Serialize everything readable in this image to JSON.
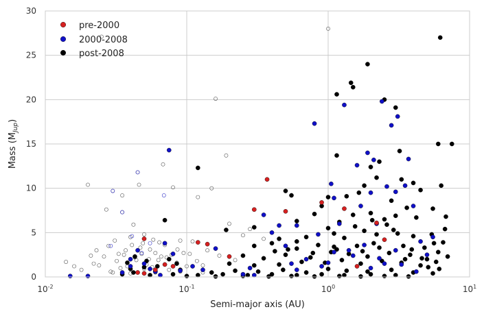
{
  "chart_data": {
    "type": "scatter",
    "title": "",
    "xlabel": "Semi-major axis (AU)",
    "ylabel_main": "Mass (M",
    "ylabel_sub": "Jup",
    "ylabel_end": ")",
    "x_scale": "log",
    "xlim": [
      0.01,
      10
    ],
    "ylim": [
      0,
      30
    ],
    "x_ticks": [
      {
        "value": 0.01,
        "base": "10",
        "exp": "-2"
      },
      {
        "value": 0.1,
        "base": "10",
        "exp": "-1"
      },
      {
        "value": 1,
        "base": "10",
        "exp": "0"
      },
      {
        "value": 10,
        "base": "10",
        "exp": "1"
      }
    ],
    "y_ticks": [
      0,
      5,
      10,
      15,
      20,
      25,
      30
    ],
    "grid": true,
    "legend_position": "top-left",
    "series": [
      {
        "name": "pre-2000",
        "color": "#d62020",
        "marker": "filled",
        "points": [
          [
            0.05,
            4.3
          ],
          [
            0.045,
            0.5
          ],
          [
            0.07,
            1.4
          ],
          [
            0.08,
            1.2
          ],
          [
            0.12,
            3.9
          ],
          [
            0.14,
            3.7
          ],
          [
            0.2,
            2.3
          ],
          [
            0.3,
            7.6
          ],
          [
            0.37,
            11
          ],
          [
            0.5,
            7.4
          ],
          [
            0.9,
            8.4
          ],
          [
            1.3,
            7.7
          ],
          [
            1.6,
            1.2
          ],
          [
            2.2,
            6.1
          ],
          [
            2.5,
            4.2
          ],
          [
            0.05,
            0.4
          ],
          [
            0.06,
            0.8
          ]
        ]
      },
      {
        "name": "2000-2008",
        "color": "#1010c8",
        "marker": "filled",
        "points": [
          [
            0.075,
            14.3
          ],
          [
            0.07,
            3.8
          ],
          [
            0.035,
            0.5
          ],
          [
            0.04,
            1.2
          ],
          [
            0.06,
            0.6
          ],
          [
            0.09,
            0.7
          ],
          [
            0.11,
            1.2
          ],
          [
            0.16,
            3.2
          ],
          [
            0.28,
            1.0
          ],
          [
            0.35,
            7.0
          ],
          [
            0.4,
            5.0
          ],
          [
            0.45,
            5.8
          ],
          [
            0.55,
            1.5
          ],
          [
            0.6,
            5.8
          ],
          [
            0.8,
            17.3
          ],
          [
            0.85,
            4.8
          ],
          [
            1.05,
            10.5
          ],
          [
            1.1,
            8.9
          ],
          [
            1.2,
            6.0
          ],
          [
            1.3,
            19.4
          ],
          [
            1.4,
            3.0
          ],
          [
            1.6,
            12.6
          ],
          [
            1.7,
            8.0
          ],
          [
            1.9,
            14.0
          ],
          [
            2.0,
            9.5
          ],
          [
            2.1,
            13.2
          ],
          [
            2.2,
            6.0
          ],
          [
            2.4,
            19.8
          ],
          [
            2.6,
            10.2
          ],
          [
            2.8,
            17.1
          ],
          [
            3.0,
            9.6
          ],
          [
            3.1,
            18.1
          ],
          [
            3.5,
            10.3
          ],
          [
            3.7,
            13.3
          ],
          [
            4.0,
            8.0
          ],
          [
            4.5,
            4.0
          ],
          [
            5.0,
            2.5
          ],
          [
            5.5,
            4.5
          ],
          [
            0.5,
            3.5
          ],
          [
            0.7,
            2.0
          ],
          [
            1.0,
            1.6
          ],
          [
            1.5,
            2.4
          ],
          [
            2.0,
            1.0
          ],
          [
            2.5,
            1.5
          ],
          [
            3.0,
            3.0
          ],
          [
            0.02,
            0.1
          ],
          [
            0.015,
            0.1
          ],
          [
            0.04,
            2.0
          ],
          [
            0.05,
            1.5
          ],
          [
            0.065,
            0.2
          ],
          [
            0.08,
            2.6
          ],
          [
            0.13,
            0.8
          ],
          [
            0.25,
            0.3
          ],
          [
            0.3,
            0.2
          ],
          [
            0.6,
            0.8
          ],
          [
            0.9,
            1.2
          ],
          [
            1.1,
            2.8
          ],
          [
            1.8,
            3.6
          ],
          [
            2.3,
            2.1
          ],
          [
            3.3,
            1.4
          ],
          [
            4.2,
            0.6
          ],
          [
            0.045,
            3.0
          ],
          [
            0.055,
            0.9
          ]
        ]
      },
      {
        "name": "post-2008",
        "color": "#000000",
        "marker": "filled",
        "points": [
          [
            6.2,
            27.0
          ],
          [
            7.5,
            15.0
          ],
          [
            6.0,
            15.0
          ],
          [
            1.9,
            24.0
          ],
          [
            1.45,
            21.9
          ],
          [
            1.5,
            21.4
          ],
          [
            1.15,
            20.6
          ],
          [
            2.5,
            20.0
          ],
          [
            3.0,
            19.1
          ],
          [
            3.2,
            14.2
          ],
          [
            2.3,
            13.0
          ],
          [
            1.15,
            13.7
          ],
          [
            0.12,
            12.3
          ],
          [
            2.0,
            12.4
          ],
          [
            2.2,
            11.2
          ],
          [
            3.3,
            11.0
          ],
          [
            4.0,
            10.6
          ],
          [
            4.5,
            9.8
          ],
          [
            6.3,
            10.3
          ],
          [
            1.8,
            10.3
          ],
          [
            0.5,
            9.7
          ],
          [
            1.65,
            9.5
          ],
          [
            1.0,
            9.0
          ],
          [
            1.35,
            9.1
          ],
          [
            0.55,
            9.2
          ],
          [
            0.9,
            8.0
          ],
          [
            2.8,
            8.6
          ],
          [
            3.6,
            7.8
          ],
          [
            5.5,
            7.7
          ],
          [
            6.8,
            6.8
          ],
          [
            0.07,
            6.4
          ],
          [
            0.19,
            5.3
          ],
          [
            0.3,
            5.6
          ],
          [
            0.6,
            6.3
          ],
          [
            0.8,
            7.1
          ],
          [
            1.2,
            6.2
          ],
          [
            1.5,
            7.0
          ],
          [
            2.0,
            7.2
          ],
          [
            2.5,
            6.5
          ],
          [
            3.0,
            6.9
          ],
          [
            4.2,
            6.7
          ],
          [
            6.7,
            5.4
          ],
          [
            1.0,
            5.5
          ],
          [
            1.8,
            5.2
          ],
          [
            2.6,
            5.9
          ],
          [
            0.45,
            4.3
          ],
          [
            0.7,
            4.5
          ],
          [
            1.3,
            4.4
          ],
          [
            2.2,
            4.8
          ],
          [
            3.1,
            4.9
          ],
          [
            4.0,
            4.6
          ],
          [
            5.4,
            4.8
          ],
          [
            6.5,
            3.9
          ],
          [
            0.3,
            3.5
          ],
          [
            0.4,
            3.8
          ],
          [
            0.6,
            3.2
          ],
          [
            0.85,
            3.6
          ],
          [
            1.1,
            3.4
          ],
          [
            1.6,
            3.5
          ],
          [
            2.1,
            3.8
          ],
          [
            3.4,
            3.5
          ],
          [
            5.6,
            3.8
          ],
          [
            7.0,
            2.3
          ],
          [
            0.25,
            2.4
          ],
          [
            0.35,
            2.1
          ],
          [
            0.5,
            2.5
          ],
          [
            0.75,
            2.2
          ],
          [
            1.05,
            2.8
          ],
          [
            1.4,
            2.6
          ],
          [
            1.9,
            2.3
          ],
          [
            2.7,
            2.7
          ],
          [
            3.8,
            2.5
          ],
          [
            5.0,
            2.0
          ],
          [
            6.0,
            2.8
          ],
          [
            0.2,
            1.5
          ],
          [
            0.3,
            1.3
          ],
          [
            0.45,
            1.4
          ],
          [
            0.65,
            1.7
          ],
          [
            0.95,
            1.6
          ],
          [
            1.25,
            1.9
          ],
          [
            1.7,
            1.5
          ],
          [
            2.4,
            1.8
          ],
          [
            3.3,
            1.6
          ],
          [
            4.5,
            1.3
          ],
          [
            5.8,
            1.7
          ],
          [
            0.04,
            0.9
          ],
          [
            0.05,
            1.1
          ],
          [
            0.06,
            0.6
          ],
          [
            0.09,
            0.8
          ],
          [
            0.15,
            0.5
          ],
          [
            0.22,
            0.7
          ],
          [
            0.32,
            0.6
          ],
          [
            0.48,
            0.8
          ],
          [
            0.7,
            0.5
          ],
          [
            1.0,
            0.9
          ],
          [
            1.35,
            0.7
          ],
          [
            1.9,
            0.6
          ],
          [
            2.8,
            0.8
          ],
          [
            4.0,
            0.5
          ],
          [
            5.5,
            0.4
          ],
          [
            0.035,
            0.3
          ],
          [
            0.042,
            0.5
          ],
          [
            0.055,
            0.2
          ],
          [
            0.08,
            0.3
          ],
          [
            0.12,
            0.2
          ],
          [
            0.18,
            0.3
          ],
          [
            0.27,
            0.2
          ],
          [
            0.4,
            0.3
          ],
          [
            0.6,
            0.2
          ],
          [
            0.9,
            0.3
          ],
          [
            1.3,
            0.2
          ],
          [
            2.0,
            0.3
          ],
          [
            3.0,
            0.2
          ],
          [
            0.1,
            0.1
          ],
          [
            0.16,
            0.05
          ],
          [
            0.25,
            0.1
          ],
          [
            0.38,
            0.05
          ],
          [
            0.55,
            0.1
          ],
          [
            0.8,
            0.05
          ],
          [
            1.2,
            0.1
          ],
          [
            1.7,
            0.05
          ],
          [
            2.5,
            0.1
          ],
          [
            3.7,
            0.05
          ],
          [
            0.038,
            1.6
          ],
          [
            0.043,
            2.3
          ],
          [
            0.052,
            1.8
          ],
          [
            0.062,
            1.2
          ],
          [
            0.075,
            2.0
          ],
          [
            0.085,
            1.5
          ],
          [
            0.6,
            4.0
          ],
          [
            1.1,
            4.9
          ],
          [
            1.55,
            5.7
          ],
          [
            2.05,
            6.4
          ],
          [
            2.9,
            5.3
          ],
          [
            3.9,
            3.1
          ],
          [
            4.8,
            3.3
          ],
          [
            0.42,
            2.9
          ],
          [
            0.52,
            3.1
          ],
          [
            0.78,
            2.7
          ],
          [
            1.15,
            3.1
          ],
          [
            1.75,
            2.9
          ],
          [
            2.3,
            3.3
          ],
          [
            3.5,
            2.0
          ],
          [
            4.6,
            2.1
          ],
          [
            5.1,
            1.1
          ],
          [
            6.1,
            0.9
          ]
        ]
      }
    ],
    "hollow": {
      "points": [
        [
          0.014,
          1.7
        ],
        [
          0.016,
          1.2
        ],
        [
          0.018,
          0.8
        ],
        [
          0.02,
          10.4
        ],
        [
          0.021,
          2.4
        ],
        [
          0.022,
          1.5
        ],
        [
          0.023,
          3.0
        ],
        [
          0.025,
          27.1
        ],
        [
          0.026,
          2.3
        ],
        [
          0.027,
          7.6
        ],
        [
          0.028,
          3.5
        ],
        [
          0.029,
          0.6
        ],
        [
          0.03,
          9.7
        ],
        [
          0.031,
          4.1
        ],
        [
          0.032,
          1.8
        ],
        [
          0.033,
          2.6
        ],
        [
          0.035,
          7.3
        ],
        [
          0.035,
          9.2
        ],
        [
          0.036,
          2.5
        ],
        [
          0.037,
          3.0
        ],
        [
          0.038,
          1.2
        ],
        [
          0.04,
          4.5
        ],
        [
          0.042,
          5.9
        ],
        [
          0.043,
          2.2
        ],
        [
          0.045,
          11.8
        ],
        [
          0.046,
          10.4
        ],
        [
          0.047,
          3.3
        ],
        [
          0.048,
          2.6
        ],
        [
          0.05,
          4.8
        ],
        [
          0.052,
          1.4
        ],
        [
          0.054,
          2.0
        ],
        [
          0.055,
          3.1
        ],
        [
          0.057,
          1.1
        ],
        [
          0.06,
          2.7
        ],
        [
          0.063,
          1.9
        ],
        [
          0.066,
          2.3
        ],
        [
          0.068,
          12.7
        ],
        [
          0.07,
          3.6
        ],
        [
          0.072,
          2.2
        ],
        [
          0.075,
          0.8
        ],
        [
          0.078,
          2.5
        ],
        [
          0.08,
          10.1
        ],
        [
          0.085,
          1.6
        ],
        [
          0.09,
          4.1
        ],
        [
          0.095,
          2.7
        ],
        [
          0.1,
          1.2
        ],
        [
          0.11,
          4.0
        ],
        [
          0.12,
          9.0
        ],
        [
          0.13,
          1.3
        ],
        [
          0.14,
          3.0
        ],
        [
          0.15,
          10.0
        ],
        [
          0.16,
          20.1
        ],
        [
          0.17,
          2.4
        ],
        [
          0.19,
          13.7
        ],
        [
          0.2,
          6.0
        ],
        [
          0.22,
          1.9
        ],
        [
          0.25,
          4.7
        ],
        [
          0.28,
          5.4
        ],
        [
          0.35,
          4.3
        ],
        [
          1.0,
          28.0
        ],
        [
          0.04,
          0.4
        ],
        [
          0.05,
          0.9
        ],
        [
          0.06,
          0.5
        ],
        [
          0.07,
          1.4
        ],
        [
          0.09,
          0.6
        ],
        [
          0.13,
          0.5
        ],
        [
          0.03,
          0.5
        ],
        [
          0.024,
          1.3
        ],
        [
          0.034,
          1.0
        ],
        [
          0.041,
          3.6
        ],
        [
          0.044,
          1.9
        ],
        [
          0.049,
          3.8
        ],
        [
          0.058,
          4.2
        ],
        [
          0.064,
          3.9
        ],
        [
          0.086,
          3.1
        ],
        [
          0.105,
          2.6
        ],
        [
          0.118,
          1.8
        ]
      ],
      "blue_outline_points": [
        [
          0.03,
          9.7
        ],
        [
          0.045,
          11.8
        ],
        [
          0.069,
          9.2
        ],
        [
          0.035,
          7.3
        ],
        [
          0.029,
          3.5
        ],
        [
          0.055,
          3.8
        ],
        [
          0.041,
          4.6
        ],
        [
          0.048,
          2.7
        ]
      ]
    }
  }
}
